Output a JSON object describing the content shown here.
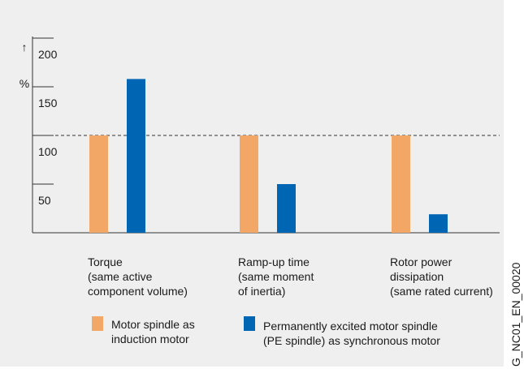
{
  "chart_data": {
    "type": "bar",
    "y_axis_symbol": "↑",
    "y_axis_unit": "%",
    "categories": [
      [
        "Torque",
        "(same active",
        "component volume)"
      ],
      [
        "Ramp-up time",
        "(same moment",
        "of inertia)"
      ],
      [
        "Rotor power",
        "dissipation",
        "(same rated current)"
      ]
    ],
    "series": [
      {
        "name": [
          "Motor spindle as",
          "induction motor"
        ],
        "color": "#f2a766",
        "values": [
          100,
          100,
          100
        ]
      },
      {
        "name": [
          "Permanently excited motor spindle",
          "(PE spindle) as synchronous motor"
        ],
        "color": "#0066b3",
        "values": [
          158,
          50,
          19
        ]
      }
    ],
    "ylim": [
      0,
      200
    ],
    "yticks": [
      50,
      100,
      150,
      200
    ],
    "reference_line": 100,
    "figure_id": "G_NC01_EN_00020"
  }
}
